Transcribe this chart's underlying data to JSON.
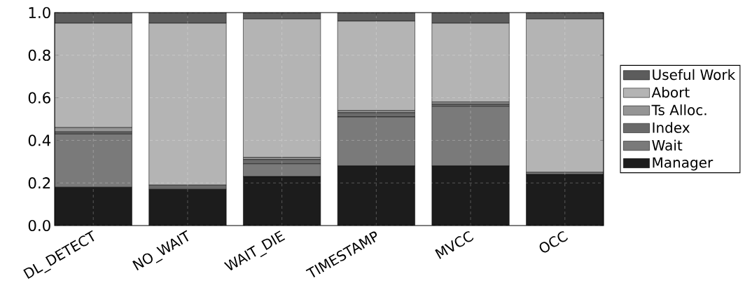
{
  "chart_data": {
    "type": "bar",
    "stacked": true,
    "categories": [
      "DL_DETECT",
      "NO_WAIT",
      "WAIT_DIE",
      "TIMESTAMP",
      "MVCC",
      "OCC"
    ],
    "series": [
      {
        "name": "Manager",
        "color": "#1c1c1c",
        "values": [
          0.18,
          0.17,
          0.23,
          0.28,
          0.28,
          0.24
        ]
      },
      {
        "name": "Wait",
        "color": "#7a7a7a",
        "values": [
          0.25,
          0,
          0.06,
          0.23,
          0.28,
          0.01
        ]
      },
      {
        "name": "Index",
        "color": "#6a6a6a",
        "values": [
          0.01,
          0.02,
          0.02,
          0.02,
          0.01,
          0
        ]
      },
      {
        "name": "Ts Alloc.",
        "color": "#959595",
        "values": [
          0.02,
          0,
          0.01,
          0.01,
          0.01,
          0
        ]
      },
      {
        "name": "Abort",
        "color": "#b4b4b4",
        "values": [
          0.49,
          0.76,
          0.65,
          0.42,
          0.37,
          0.72
        ]
      },
      {
        "name": "Useful Work",
        "color": "#5c5c5c",
        "values": [
          0.05,
          0.05,
          0.03,
          0.04,
          0.05,
          0.03
        ]
      }
    ],
    "ylim": [
      0,
      1
    ],
    "yticks": [
      {
        "value": 0,
        "label": "0.0"
      },
      {
        "value": 0.2,
        "label": "0.2"
      },
      {
        "value": 0.4,
        "label": "0.4"
      },
      {
        "value": 0.6,
        "label": "0.6"
      },
      {
        "value": 0.8,
        "label": "0.8"
      },
      {
        "value": 1,
        "label": "1.0"
      }
    ],
    "grid": true,
    "legend": "right"
  }
}
